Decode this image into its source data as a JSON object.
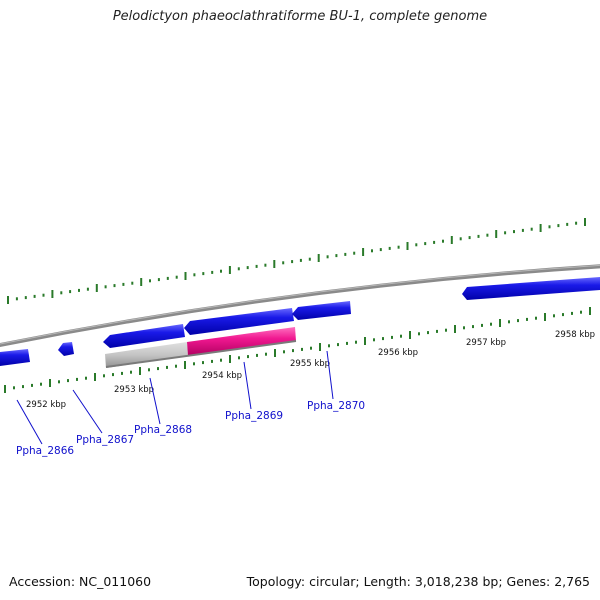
{
  "title": "Pelodictyon phaeoclathratiforme BU-1, complete genome",
  "footer": {
    "accession": "Accession: NC_011060",
    "summary": "Topology: circular; Length: 3,018,238 bp; Genes: 2,765"
  },
  "genome": {
    "kbp_labels": [
      "2952 kbp",
      "2953 kbp",
      "2954 kbp",
      "2955 kbp",
      "2956 kbp",
      "2957 kbp",
      "2958 kbp"
    ],
    "gene_labels": [
      "Ppha_2866",
      "Ppha_2867",
      "Ppha_2868",
      "Ppha_2869",
      "Ppha_2870"
    ],
    "colors": {
      "forward_gene": "#1414e0",
      "highlight_gene": "#f01890",
      "gray_gene": "#c0c0c0",
      "backbone": "#8a8a8a",
      "tick": "#2a7a2a",
      "label": "#1010cc"
    }
  }
}
